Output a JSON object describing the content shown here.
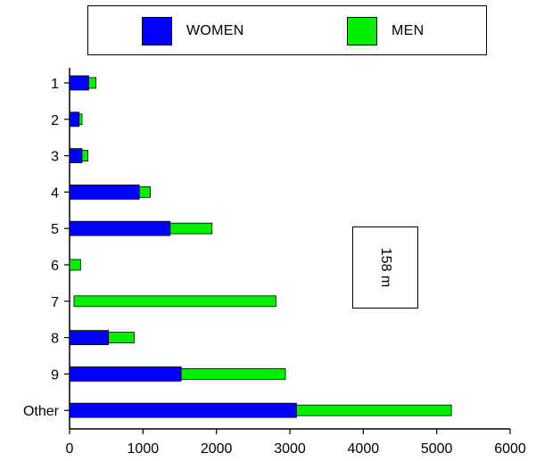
{
  "chart_data": {
    "type": "bar",
    "orientation": "horizontal",
    "stacked": true,
    "categories": [
      "1",
      "2",
      "3",
      "4",
      "5",
      "6",
      "7",
      "8",
      "9",
      "Other"
    ],
    "series": [
      {
        "name": "WOMEN",
        "color": "#0000ff",
        "values": [
          260,
          130,
          170,
          950,
          1370,
          0,
          0,
          530,
          1520,
          3090
        ]
      },
      {
        "name": "MEN",
        "color": "#00ee00",
        "values": [
          100,
          40,
          80,
          150,
          570,
          150,
          2750,
          350,
          1420,
          2110
        ]
      }
    ],
    "xticks": [
      0,
      1000,
      2000,
      3000,
      4000,
      5000,
      6000
    ],
    "xlim": [
      0,
      6000
    ],
    "legend_position": "top",
    "annotation": "158 m",
    "grid": false
  }
}
